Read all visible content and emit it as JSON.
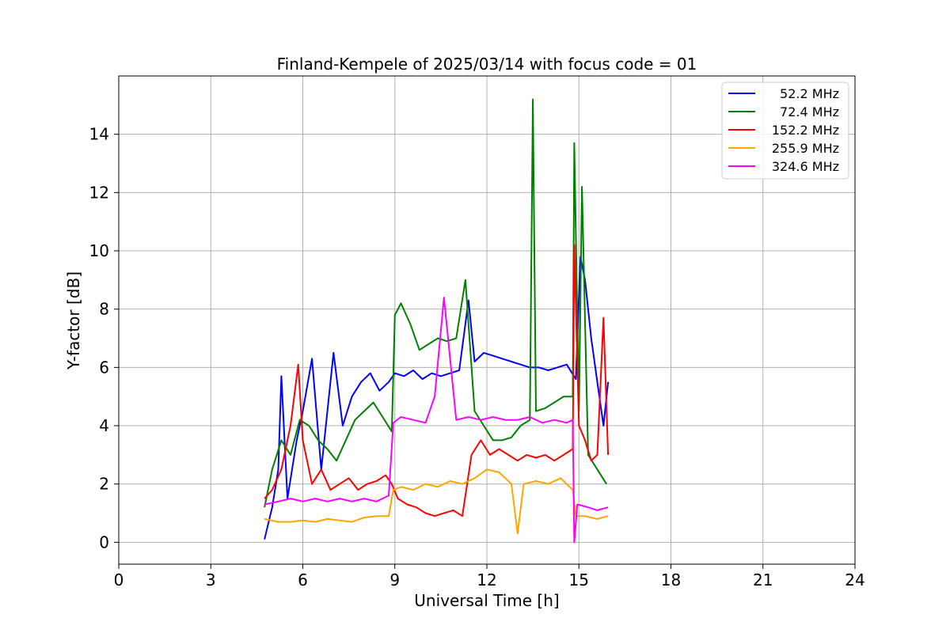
{
  "chart_data": {
    "type": "line",
    "title": "Finland-Kempele of 2025/03/14 with focus code = 01",
    "xlabel": "Universal Time [h]",
    "ylabel": "Y-factor [dB]",
    "xlim": [
      0,
      24
    ],
    "ylim": [
      -0.75,
      16
    ],
    "xticks": [
      0,
      3,
      6,
      9,
      12,
      15,
      18,
      21,
      24
    ],
    "yticks": [
      0,
      2,
      4,
      6,
      8,
      10,
      12,
      14
    ],
    "grid": true,
    "legend_position": "top-right",
    "series": [
      {
        "name": "52.2 MHz",
        "color": "#0000ff",
        "x": [
          4.75,
          5.0,
          5.2,
          5.3,
          5.5,
          5.8,
          6.0,
          6.3,
          6.6,
          7.0,
          7.3,
          7.6,
          7.9,
          8.2,
          8.5,
          8.8,
          9.0,
          9.3,
          9.6,
          9.9,
          10.2,
          10.5,
          10.8,
          11.1,
          11.4,
          11.6,
          11.9,
          12.2,
          12.5,
          12.8,
          13.1,
          13.4,
          13.7,
          14.0,
          14.3,
          14.6,
          14.9,
          15.05,
          15.2,
          15.4,
          15.6,
          15.8,
          15.95
        ],
        "y": [
          0.1,
          1.2,
          2.5,
          5.7,
          1.5,
          3.5,
          4.5,
          6.3,
          2.5,
          6.5,
          4.0,
          5.0,
          5.5,
          5.8,
          5.2,
          5.5,
          5.8,
          5.7,
          5.9,
          5.6,
          5.8,
          5.7,
          5.8,
          5.9,
          8.3,
          6.2,
          6.5,
          6.4,
          6.3,
          6.2,
          6.1,
          6.0,
          6.0,
          5.9,
          6.0,
          6.1,
          5.6,
          9.8,
          9.0,
          7.0,
          5.5,
          4.0,
          5.5
        ]
      },
      {
        "name": "72.4 MHz",
        "color": "#008000",
        "x": [
          4.75,
          5.0,
          5.3,
          5.6,
          5.9,
          6.2,
          6.5,
          6.8,
          7.1,
          7.4,
          7.7,
          8.0,
          8.3,
          8.6,
          8.9,
          9.0,
          9.2,
          9.5,
          9.8,
          10.1,
          10.4,
          10.7,
          11.0,
          11.3,
          11.6,
          11.9,
          12.2,
          12.5,
          12.8,
          13.1,
          13.4,
          13.5,
          13.6,
          13.9,
          14.2,
          14.5,
          14.8,
          14.85,
          15.0,
          15.1,
          15.3,
          15.6,
          15.9
        ],
        "y": [
          1.2,
          2.5,
          3.5,
          3.0,
          4.2,
          4.0,
          3.5,
          3.2,
          2.8,
          3.5,
          4.2,
          4.5,
          4.8,
          4.3,
          3.8,
          7.8,
          8.2,
          7.5,
          6.6,
          6.8,
          7.0,
          6.9,
          7.0,
          9.0,
          4.5,
          4.0,
          3.5,
          3.5,
          3.6,
          4.0,
          4.2,
          15.2,
          4.5,
          4.6,
          4.8,
          5.0,
          5.0,
          13.7,
          4.5,
          12.2,
          3.0,
          2.5,
          2.0
        ]
      },
      {
        "name": "152.2 MHz",
        "color": "#ff0000",
        "x": [
          4.75,
          5.0,
          5.3,
          5.6,
          5.85,
          6.0,
          6.3,
          6.6,
          6.9,
          7.2,
          7.5,
          7.8,
          8.1,
          8.4,
          8.7,
          8.9,
          9.1,
          9.4,
          9.7,
          10.0,
          10.3,
          10.6,
          10.9,
          11.2,
          11.5,
          11.8,
          12.1,
          12.4,
          12.7,
          13.0,
          13.3,
          13.6,
          13.9,
          14.2,
          14.5,
          14.8,
          14.85,
          15.0,
          15.2,
          15.4,
          15.6,
          15.8,
          15.95
        ],
        "y": [
          1.5,
          1.8,
          2.5,
          4.0,
          6.1,
          3.5,
          2.0,
          2.5,
          1.8,
          2.0,
          2.2,
          1.8,
          2.0,
          2.1,
          2.3,
          2.0,
          1.5,
          1.3,
          1.2,
          1.0,
          0.9,
          1.0,
          1.1,
          0.9,
          3.0,
          3.5,
          3.0,
          3.2,
          3.0,
          2.8,
          3.0,
          2.9,
          3.0,
          2.8,
          3.0,
          3.2,
          10.2,
          4.0,
          3.5,
          2.8,
          3.0,
          7.7,
          3.0
        ]
      },
      {
        "name": "255.9 MHz",
        "color": "#ffa500",
        "x": [
          4.75,
          5.2,
          5.6,
          6.0,
          6.4,
          6.8,
          7.2,
          7.6,
          8.0,
          8.4,
          8.8,
          8.95,
          9.2,
          9.6,
          10.0,
          10.4,
          10.8,
          11.2,
          11.6,
          12.0,
          12.4,
          12.8,
          13.0,
          13.2,
          13.6,
          14.0,
          14.4,
          14.8,
          14.9,
          15.2,
          15.6,
          15.95
        ],
        "y": [
          0.8,
          0.7,
          0.7,
          0.75,
          0.7,
          0.8,
          0.75,
          0.7,
          0.85,
          0.9,
          0.9,
          1.8,
          1.9,
          1.8,
          2.0,
          1.9,
          2.1,
          2.0,
          2.2,
          2.5,
          2.4,
          2.0,
          0.3,
          2.0,
          2.1,
          2.0,
          2.2,
          1.8,
          0.9,
          0.9,
          0.8,
          0.9
        ]
      },
      {
        "name": "324.6 MHz",
        "color": "#ff00ff",
        "x": [
          4.75,
          5.2,
          5.6,
          6.0,
          6.4,
          6.8,
          7.2,
          7.6,
          8.0,
          8.4,
          8.8,
          8.95,
          9.2,
          9.6,
          10.0,
          10.3,
          10.6,
          11.0,
          11.4,
          11.8,
          12.2,
          12.6,
          13.0,
          13.4,
          13.8,
          14.2,
          14.6,
          14.8,
          14.85,
          14.95,
          15.3,
          15.6,
          15.95
        ],
        "y": [
          1.3,
          1.4,
          1.5,
          1.4,
          1.5,
          1.4,
          1.5,
          1.4,
          1.5,
          1.4,
          1.6,
          4.1,
          4.3,
          4.2,
          4.1,
          5.0,
          8.4,
          4.2,
          4.3,
          4.2,
          4.3,
          4.2,
          4.2,
          4.3,
          4.1,
          4.2,
          4.1,
          4.2,
          0.0,
          1.3,
          1.2,
          1.1,
          1.2
        ]
      }
    ]
  }
}
